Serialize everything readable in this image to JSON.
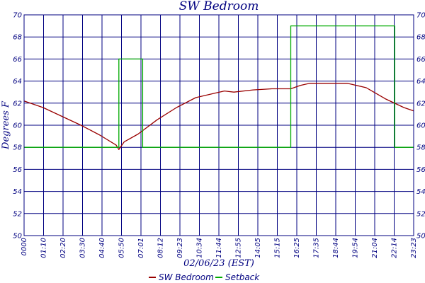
{
  "chart_data": {
    "type": "line",
    "title": "SW Bedroom",
    "xlabel": "02/06/23 (EST)",
    "ylabel": "Degrees F",
    "ylim": [
      50,
      70
    ],
    "y_ticks": [
      "50",
      "52",
      "54",
      "56",
      "58",
      "60",
      "62",
      "64",
      "66",
      "68",
      "70"
    ],
    "x_ticks": [
      "0000",
      "01:10",
      "02:20",
      "03:30",
      "04:40",
      "05:50",
      "07:01",
      "08:12",
      "09:23",
      "10:34",
      "11:44",
      "12:55",
      "14:05",
      "15:15",
      "16:25",
      "17:35",
      "18:44",
      "19:54",
      "21:04",
      "22:14",
      "23:23"
    ],
    "grid": true,
    "legend_position": "bottom",
    "series": [
      {
        "name": "SW Bedroom",
        "color": "#990000",
        "values": [
          [
            "00:00",
            62.2
          ],
          [
            "01:10",
            61.6
          ],
          [
            "02:20",
            60.8
          ],
          [
            "03:30",
            60.0
          ],
          [
            "04:40",
            59.1
          ],
          [
            "05:40",
            58.2
          ],
          [
            "05:50",
            57.8
          ],
          [
            "06:10",
            58.5
          ],
          [
            "07:01",
            59.2
          ],
          [
            "08:12",
            60.5
          ],
          [
            "09:23",
            61.6
          ],
          [
            "10:34",
            62.5
          ],
          [
            "11:44",
            62.9
          ],
          [
            "12:20",
            63.1
          ],
          [
            "12:55",
            63.0
          ],
          [
            "14:05",
            63.2
          ],
          [
            "15:15",
            63.3
          ],
          [
            "16:25",
            63.3
          ],
          [
            "17:00",
            63.6
          ],
          [
            "17:35",
            63.8
          ],
          [
            "18:44",
            63.8
          ],
          [
            "19:54",
            63.8
          ],
          [
            "21:04",
            63.4
          ],
          [
            "22:14",
            62.4
          ],
          [
            "23:23",
            61.6
          ],
          [
            "23:59",
            61.3
          ]
        ]
      },
      {
        "name": "Setback",
        "color": "#00aa00",
        "values": [
          [
            "00:00",
            58
          ],
          [
            "05:50",
            58
          ],
          [
            "05:50",
            66
          ],
          [
            "07:18",
            66
          ],
          [
            "07:18",
            58
          ],
          [
            "16:25",
            58
          ],
          [
            "16:25",
            69
          ],
          [
            "22:49",
            69
          ],
          [
            "22:49",
            58
          ],
          [
            "23:59",
            58
          ]
        ]
      }
    ]
  }
}
